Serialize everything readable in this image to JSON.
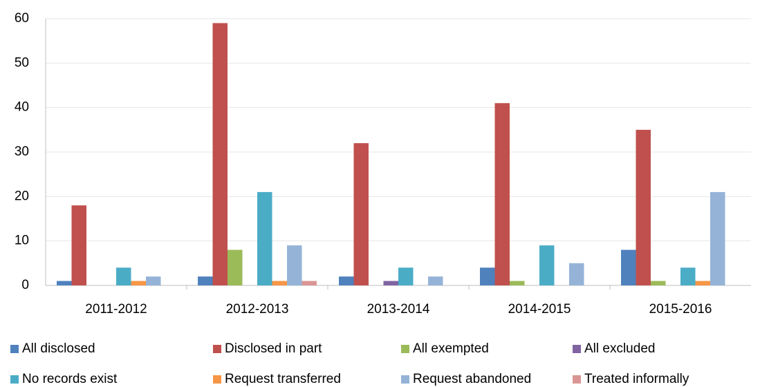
{
  "chart_data": {
    "type": "bar",
    "categories": [
      "2011-2012",
      "2012-2013",
      "2013-2014",
      "2014-2015",
      "2015-2016"
    ],
    "series": [
      {
        "name": "All disclosed",
        "color": "#4f81bd",
        "values": [
          1,
          2,
          2,
          4,
          8
        ]
      },
      {
        "name": "Disclosed in part",
        "color": "#c0504d",
        "values": [
          18,
          59,
          32,
          41,
          35
        ]
      },
      {
        "name": "All exempted",
        "color": "#9bbb59",
        "values": [
          0,
          8,
          0,
          1,
          1
        ]
      },
      {
        "name": "All excluded",
        "color": "#8064a2",
        "values": [
          0,
          0,
          1,
          0,
          0
        ]
      },
      {
        "name": "No records exist",
        "color": "#4bacc6",
        "values": [
          4,
          21,
          4,
          9,
          4
        ]
      },
      {
        "name": "Request transferred",
        "color": "#f79646",
        "values": [
          1,
          1,
          0,
          0,
          1
        ]
      },
      {
        "name": "Request abandoned",
        "color": "#95b3d7",
        "values": [
          2,
          9,
          2,
          5,
          21
        ]
      },
      {
        "name": "Treated informally",
        "color": "#d99694",
        "values": [
          0,
          1,
          0,
          0,
          0
        ]
      }
    ],
    "ylim": [
      0,
      60
    ],
    "yticks": [
      0,
      10,
      20,
      30,
      40,
      50,
      60
    ],
    "grid": true,
    "legend": "bottom"
  }
}
